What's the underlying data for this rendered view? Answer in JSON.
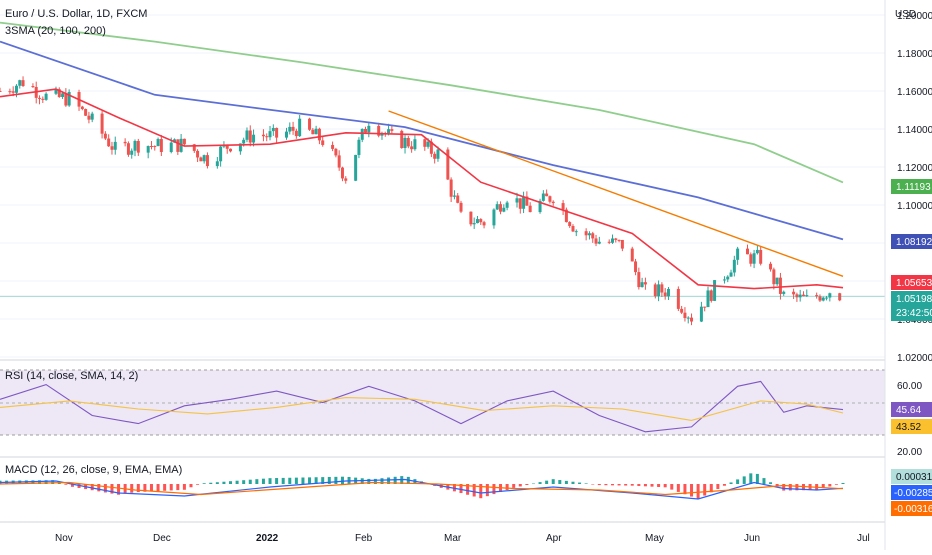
{
  "header": {
    "symbol_title": "Euro / U.S. Dollar, 1D, FXCM",
    "indicator_title": "3SMA (20, 100, 200)",
    "currency": "USD"
  },
  "price_pane": {
    "price_ticks": [
      "1.20000",
      "1.18000",
      "1.16000",
      "1.14000",
      "1.12000",
      "1.10000",
      "1.08000",
      "1.06000",
      "1.04000",
      "1.02000"
    ],
    "tags": {
      "sma200": "1.11193",
      "sma100": "1.08192",
      "sma20": "1.05653",
      "last_price": "1.05198",
      "countdown": "23:42:50"
    },
    "colors": {
      "sma20": "#f23645",
      "sma100": "#5b6fd6",
      "sma200": "#8fce8c",
      "trendline": "#f57c00",
      "up": "#26a69a",
      "down": "#ef5350"
    }
  },
  "rsi_pane": {
    "title": "RSI (14, close, SMA, 14, 2)",
    "ticks": [
      "60.00",
      "20.00"
    ],
    "tags": {
      "rsi": "45.64",
      "rsi_ma": "43.52"
    },
    "colors": {
      "rsi": "#7e57c2",
      "ma": "#f5c242",
      "band": "#ede7f6"
    }
  },
  "macd_pane": {
    "title": "MACD (12, 26, close, 9, EMA, EMA)",
    "tags": {
      "histogram": "0.00031",
      "macd": "-0.00285",
      "signal": "-0.00316"
    },
    "colors": {
      "macd": "#2962ff",
      "signal": "#ff6d00",
      "hist_up": "#26a69a",
      "hist_down": "#ff5252"
    }
  },
  "time_axis": {
    "labels": [
      "Nov",
      "Dec",
      "2022",
      "Feb",
      "Mar",
      "Apr",
      "May",
      "Jun",
      "Jul"
    ]
  },
  "chart_data": [
    {
      "type": "line",
      "title": "Euro / U.S. Dollar, 1D, FXCM",
      "ylabel": "USD",
      "ylim": [
        1.02,
        1.2
      ],
      "x_range": [
        "2021-10-15",
        "2022-06-28"
      ],
      "candles_close": [
        [
          "2021-10-15",
          1.16
        ],
        [
          "2021-10-22",
          1.165
        ],
        [
          "2021-10-29",
          1.157
        ],
        [
          "2021-11-05",
          1.156
        ],
        [
          "2021-11-12",
          1.144
        ],
        [
          "2021-11-19",
          1.129
        ],
        [
          "2021-11-26",
          1.132
        ],
        [
          "2021-12-03",
          1.131
        ],
        [
          "2021-12-10",
          1.132
        ],
        [
          "2021-12-17",
          1.124
        ],
        [
          "2021-12-24",
          1.132
        ],
        [
          "2021-12-31",
          1.137
        ],
        [
          "2022-01-07",
          1.136
        ],
        [
          "2022-01-14",
          1.141
        ],
        [
          "2022-01-21",
          1.134
        ],
        [
          "2022-01-28",
          1.115
        ],
        [
          "2022-02-04",
          1.145
        ],
        [
          "2022-02-11",
          1.135
        ],
        [
          "2022-02-18",
          1.132
        ],
        [
          "2022-02-25",
          1.127
        ],
        [
          "2022-03-04",
          1.093
        ],
        [
          "2022-03-11",
          1.091
        ],
        [
          "2022-03-18",
          1.105
        ],
        [
          "2022-03-25",
          1.098
        ],
        [
          "2022-04-01",
          1.105
        ],
        [
          "2022-04-08",
          1.087
        ],
        [
          "2022-04-15",
          1.081
        ],
        [
          "2022-04-22",
          1.079
        ],
        [
          "2022-04-29",
          1.054
        ],
        [
          "2022-05-06",
          1.055
        ],
        [
          "2022-05-13",
          1.041
        ],
        [
          "2022-05-20",
          1.056
        ],
        [
          "2022-05-27",
          1.073
        ],
        [
          "2022-06-03",
          1.072
        ],
        [
          "2022-06-10",
          1.052
        ],
        [
          "2022-06-17",
          1.05
        ],
        [
          "2022-06-24",
          1.055
        ],
        [
          "2022-06-28",
          1.052
        ]
      ],
      "series": [
        {
          "name": "SMA 20",
          "points": [
            [
              "2021-10-15",
              1.157
            ],
            [
              "2021-11-01",
              1.161
            ],
            [
              "2021-11-20",
              1.146
            ],
            [
              "2021-12-10",
              1.131
            ],
            [
              "2022-01-05",
              1.132
            ],
            [
              "2022-01-28",
              1.138
            ],
            [
              "2022-02-20",
              1.137
            ],
            [
              "2022-03-10",
              1.112
            ],
            [
              "2022-04-01",
              1.099
            ],
            [
              "2022-04-25",
              1.085
            ],
            [
              "2022-05-15",
              1.058
            ],
            [
              "2022-06-01",
              1.056
            ],
            [
              "2022-06-20",
              1.058
            ],
            [
              "2022-06-28",
              1.0565
            ]
          ]
        },
        {
          "name": "SMA 100",
          "points": [
            [
              "2021-10-15",
              1.186
            ],
            [
              "2021-12-01",
              1.158
            ],
            [
              "2022-01-01",
              1.151
            ],
            [
              "2022-02-15",
              1.141
            ],
            [
              "2022-04-01",
              1.121
            ],
            [
              "2022-05-15",
              1.104
            ],
            [
              "2022-06-28",
              1.0819
            ]
          ]
        },
        {
          "name": "SMA 200",
          "points": [
            [
              "2021-10-15",
              1.196
            ],
            [
              "2021-12-01",
              1.186
            ],
            [
              "2022-01-15",
              1.175
            ],
            [
              "2022-03-01",
              1.163
            ],
            [
              "2022-04-15",
              1.15
            ],
            [
              "2022-06-01",
              1.132
            ],
            [
              "2022-06-28",
              1.1119
            ]
          ]
        },
        {
          "name": "Trendline",
          "points": [
            [
              "2022-02-10",
              1.1495
            ],
            [
              "2022-06-28",
              1.0625
            ]
          ]
        }
      ]
    },
    {
      "type": "line",
      "title": "RSI (14, close, SMA, 14, 2)",
      "ylim": [
        20,
        70
      ],
      "bands": [
        30,
        50,
        70
      ],
      "series": [
        {
          "name": "RSI",
          "points": [
            [
              "2021-10-15",
              52
            ],
            [
              "2021-10-29",
              61
            ],
            [
              "2021-11-12",
              42
            ],
            [
              "2021-11-26",
              37
            ],
            [
              "2021-12-10",
              48
            ],
            [
              "2021-12-24",
              52
            ],
            [
              "2022-01-07",
              57
            ],
            [
              "2022-01-21",
              50
            ],
            [
              "2022-02-04",
              60
            ],
            [
              "2022-02-18",
              51
            ],
            [
              "2022-03-04",
              37
            ],
            [
              "2022-03-18",
              51
            ],
            [
              "2022-04-01",
              57
            ],
            [
              "2022-04-15",
              42
            ],
            [
              "2022-04-29",
              32
            ],
            [
              "2022-05-13",
              35
            ],
            [
              "2022-05-27",
              60
            ],
            [
              "2022-06-03",
              63
            ],
            [
              "2022-06-10",
              44
            ],
            [
              "2022-06-17",
              48
            ],
            [
              "2022-06-28",
              45.64
            ]
          ]
        },
        {
          "name": "RSI-based MA",
          "points": [
            [
              "2021-10-15",
              47
            ],
            [
              "2021-11-05",
              51
            ],
            [
              "2021-11-26",
              46
            ],
            [
              "2021-12-17",
              43
            ],
            [
              "2022-01-07",
              47
            ],
            [
              "2022-01-28",
              53
            ],
            [
              "2022-02-18",
              52
            ],
            [
              "2022-03-11",
              45
            ],
            [
              "2022-04-01",
              48
            ],
            [
              "2022-04-22",
              46
            ],
            [
              "2022-05-13",
              39
            ],
            [
              "2022-06-03",
              51
            ],
            [
              "2022-06-17",
              49
            ],
            [
              "2022-06-28",
              43.52
            ]
          ]
        }
      ]
    },
    {
      "type": "line",
      "title": "MACD (12, 26, close, 9, EMA, EMA)",
      "series": [
        {
          "name": "MACD",
          "points": [
            [
              "2021-10-15",
              0.001
            ],
            [
              "2021-11-01",
              0.002
            ],
            [
              "2021-11-20",
              -0.006
            ],
            [
              "2021-12-10",
              -0.008
            ],
            [
              "2022-01-05",
              -0.002
            ],
            [
              "2022-01-28",
              0.002
            ],
            [
              "2022-02-15",
              0.003
            ],
            [
              "2022-03-10",
              -0.006
            ],
            [
              "2022-04-01",
              -0.002
            ],
            [
              "2022-04-25",
              -0.006
            ],
            [
              "2022-05-15",
              -0.01
            ],
            [
              "2022-06-01",
              0.001
            ],
            [
              "2022-06-10",
              -0.003
            ],
            [
              "2022-06-20",
              -0.004
            ],
            [
              "2022-06-28",
              -0.00285
            ]
          ]
        },
        {
          "name": "Signal",
          "points": [
            [
              "2021-10-15",
              0.0
            ],
            [
              "2021-11-05",
              0.001
            ],
            [
              "2021-11-25",
              -0.004
            ],
            [
              "2021-12-15",
              -0.007
            ],
            [
              "2022-01-10",
              -0.003
            ],
            [
              "2022-02-05",
              0.001
            ],
            [
              "2022-02-25",
              0.0
            ],
            [
              "2022-03-20",
              -0.003
            ],
            [
              "2022-04-15",
              -0.004
            ],
            [
              "2022-05-05",
              -0.007
            ],
            [
              "2022-05-25",
              -0.004
            ],
            [
              "2022-06-10",
              -0.001
            ],
            [
              "2022-06-28",
              -0.00316
            ]
          ]
        }
      ]
    }
  ]
}
